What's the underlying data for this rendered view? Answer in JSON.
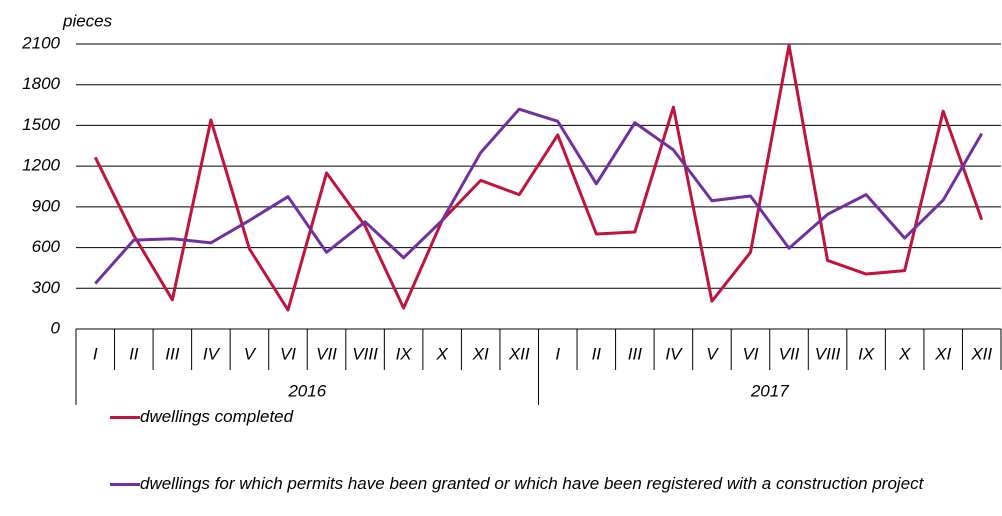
{
  "chart_data": {
    "type": "line",
    "y_label": "pieces",
    "categories": [
      "I",
      "II",
      "III",
      "IV",
      "V",
      "VI",
      "VII",
      "VIII",
      "IX",
      "X",
      "XI",
      "XII",
      "I",
      "II",
      "III",
      "IV",
      "V",
      "VI",
      "VII",
      "VIII",
      "IX",
      "X",
      "XI",
      "XII"
    ],
    "groups": [
      "2016",
      "2017"
    ],
    "series": [
      {
        "name": "dwellings completed",
        "color": "#c0143c",
        "values": [
          1265,
          690,
          215,
          1540,
          590,
          140,
          1150,
          760,
          155,
          800,
          1095,
          990,
          1430,
          700,
          715,
          1635,
          205,
          565,
          2090,
          505,
          405,
          430,
          1605,
          805
        ]
      },
      {
        "name": "dwellings for which permits have been granted or which have been registered with a construction project",
        "color": "#7030a0",
        "values": [
          335,
          655,
          665,
          635,
          800,
          975,
          565,
          790,
          525,
          800,
          1300,
          1620,
          1530,
          1070,
          1520,
          1320,
          945,
          980,
          595,
          845,
          990,
          670,
          950,
          1440
        ]
      }
    ],
    "ylim": [
      0,
      2100
    ],
    "yticks": [
      0,
      300,
      600,
      900,
      1200,
      1500,
      1800,
      2100
    ],
    "grid": true
  }
}
